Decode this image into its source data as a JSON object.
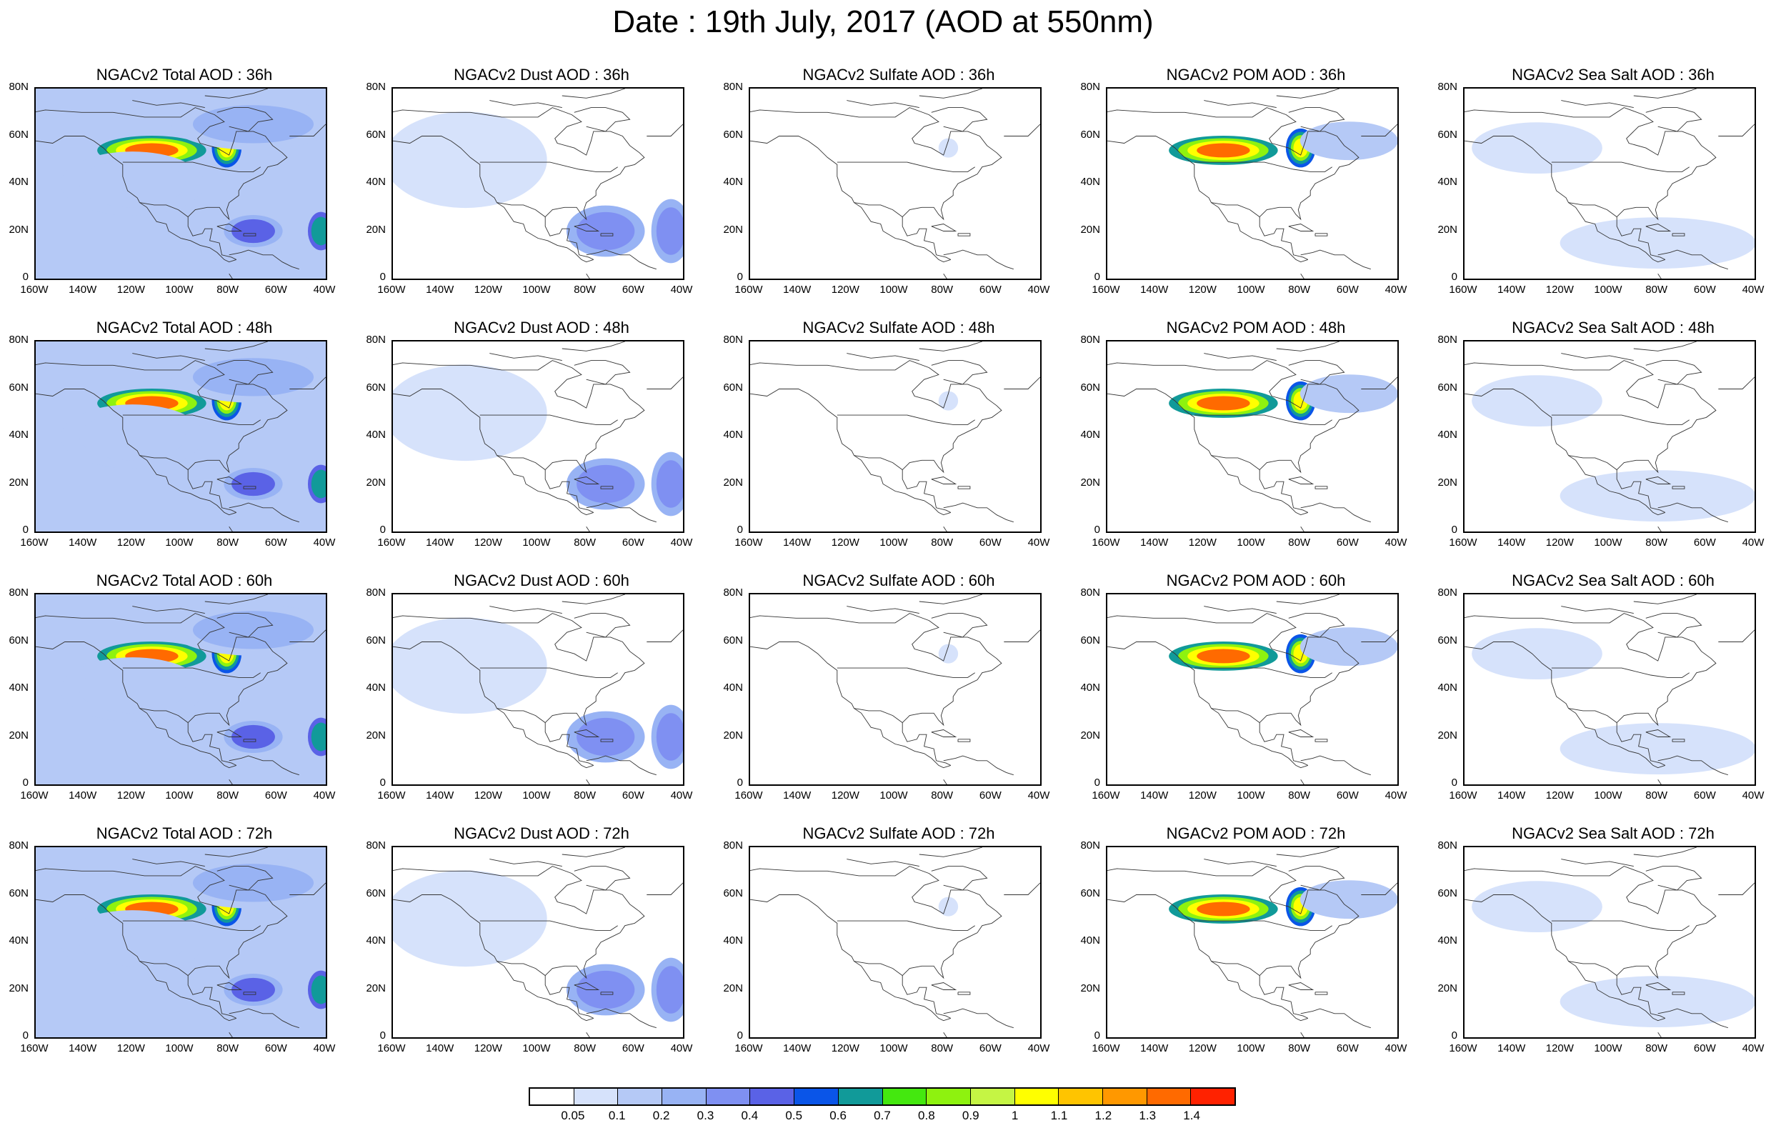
{
  "title": "Date : 19th July, 2017 (AOD at 550nm)",
  "y_ticks": [
    "80N",
    "60N",
    "40N",
    "20N",
    "0"
  ],
  "x_ticks": [
    "160W",
    "140W",
    "120W",
    "100W",
    "80W",
    "60W",
    "40W"
  ],
  "panels": [
    {
      "title": "NGACv2 Total AOD : 36h",
      "field": "total"
    },
    {
      "title": "NGACv2 Dust AOD : 36h",
      "field": "dust"
    },
    {
      "title": "NGACv2 Sulfate AOD : 36h",
      "field": "sulfate"
    },
    {
      "title": "NGACv2 POM AOD : 36h",
      "field": "pom"
    },
    {
      "title": "NGACv2 Sea Salt AOD : 36h",
      "field": "seasalt"
    },
    {
      "title": "NGACv2 Total AOD : 48h",
      "field": "total"
    },
    {
      "title": "NGACv2 Dust AOD : 48h",
      "field": "dust"
    },
    {
      "title": "NGACv2 Sulfate AOD : 48h",
      "field": "sulfate"
    },
    {
      "title": "NGACv2 POM AOD : 48h",
      "field": "pom"
    },
    {
      "title": "NGACv2 Sea Salt AOD : 48h",
      "field": "seasalt"
    },
    {
      "title": "NGACv2 Total AOD : 60h",
      "field": "total"
    },
    {
      "title": "NGACv2 Dust AOD : 60h",
      "field": "dust"
    },
    {
      "title": "NGACv2 Sulfate AOD : 60h",
      "field": "sulfate"
    },
    {
      "title": "NGACv2 POM AOD : 60h",
      "field": "pom"
    },
    {
      "title": "NGACv2 Sea Salt AOD : 60h",
      "field": "seasalt"
    },
    {
      "title": "NGACv2 Total AOD : 72h",
      "field": "total"
    },
    {
      "title": "NGACv2 Dust AOD : 72h",
      "field": "dust"
    },
    {
      "title": "NGACv2 Sulfate AOD : 72h",
      "field": "sulfate"
    },
    {
      "title": "NGACv2 POM AOD : 72h",
      "field": "pom"
    },
    {
      "title": "NGACv2 Sea Salt  AOD : 72h",
      "field": "seasalt"
    }
  ],
  "colorbar": {
    "labels": [
      "0.05",
      "0.1",
      "0.2",
      "0.3",
      "0.4",
      "0.5",
      "0.6",
      "0.7",
      "0.8",
      "0.9",
      "1",
      "1.1",
      "1.2",
      "1.3",
      "1.4"
    ],
    "colors": [
      "#ffffff",
      "#d6e2fb",
      "#b5c9f6",
      "#98b3f4",
      "#7f90f2",
      "#5a62e6",
      "#0a55e8",
      "#119a99",
      "#44e80f",
      "#8ef20f",
      "#c5f544",
      "#ffff00",
      "#ffc400",
      "#ff9800",
      "#ff6a00",
      "#ff2200"
    ]
  },
  "chart_data": {
    "type": "heatmap",
    "title": "Date : 19th July, 2017 (AOD at 550nm)",
    "x_extent": [
      "160W",
      "40W"
    ],
    "y_extent": [
      "0",
      "80N"
    ],
    "rows_forecast_hours": [
      "36h",
      "48h",
      "60h",
      "72h"
    ],
    "columns_species": [
      "Total",
      "Dust",
      "Sulfate",
      "POM",
      "Sea Salt"
    ],
    "colorbar_levels": [
      0.05,
      0.1,
      0.2,
      0.3,
      0.4,
      0.5,
      0.6,
      0.7,
      0.8,
      0.9,
      1,
      1.1,
      1.2,
      1.3,
      1.4
    ],
    "features": {
      "total": [
        {
          "lon": -112,
          "lat": 54,
          "rx": 11,
          "ry": 3,
          "aod": 1.3
        },
        {
          "lon": -81,
          "lat": 55,
          "rx": 3,
          "ry": 4,
          "aod": 1.0
        },
        {
          "lon": -70,
          "lat": 20,
          "rx": 9,
          "ry": 5,
          "aod": 0.4
        },
        {
          "lon": -42,
          "lat": 20,
          "rx": 4,
          "ry": 6,
          "aod": 0.6
        },
        {
          "lon": -120,
          "lat": 40,
          "rx": 22,
          "ry": 10,
          "aod": 0.15
        },
        {
          "lon": -70,
          "lat": 65,
          "rx": 25,
          "ry": 8,
          "aod": 0.2
        }
      ],
      "dust": [
        {
          "lon": -72,
          "lat": 20,
          "rx": 12,
          "ry": 8,
          "aod": 0.3
        },
        {
          "lon": -45,
          "lat": 20,
          "rx": 6,
          "ry": 10,
          "aod": 0.3
        },
        {
          "lon": -130,
          "lat": 50,
          "rx": 25,
          "ry": 15,
          "aod": 0.08
        }
      ],
      "sulfate": [
        {
          "lon": -78,
          "lat": 55,
          "rx": 3,
          "ry": 3,
          "aod": 0.08
        }
      ],
      "pom": [
        {
          "lon": -112,
          "lat": 54,
          "rx": 11,
          "ry": 3,
          "aod": 1.3
        },
        {
          "lon": -80,
          "lat": 55,
          "rx": 3,
          "ry": 4,
          "aod": 1.0
        },
        {
          "lon": -60,
          "lat": 58,
          "rx": 15,
          "ry": 6,
          "aod": 0.15
        }
      ],
      "seasalt": [
        {
          "lon": -130,
          "lat": 55,
          "rx": 20,
          "ry": 8,
          "aod": 0.08
        },
        {
          "lon": -80,
          "lat": 15,
          "rx": 30,
          "ry": 8,
          "aod": 0.08
        }
      ]
    }
  }
}
